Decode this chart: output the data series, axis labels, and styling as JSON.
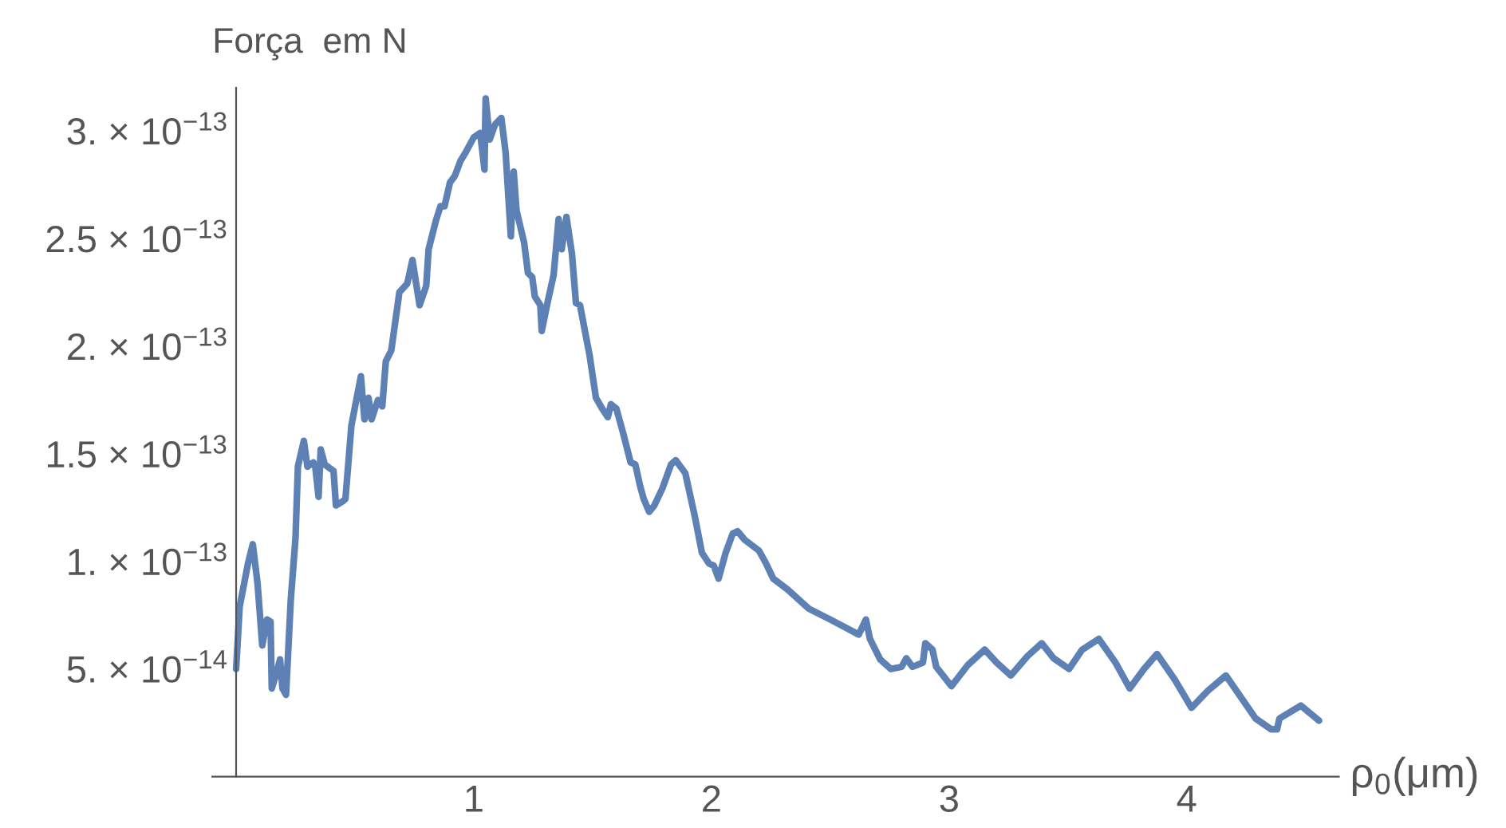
{
  "chart_data": {
    "type": "line",
    "ylabel": "Força  em N",
    "xlabel": "ρ$_{0}$(μm)",
    "x": [
      0,
      0.015,
      0.05,
      0.07,
      0.09,
      0.11,
      0.13,
      0.145,
      0.15,
      0.17,
      0.185,
      0.195,
      0.21,
      0.23,
      0.25,
      0.26,
      0.285,
      0.3,
      0.325,
      0.333,
      0.347,
      0.356,
      0.373,
      0.41,
      0.42,
      0.45,
      0.46,
      0.485,
      0.525,
      0.54,
      0.557,
      0.57,
      0.597,
      0.615,
      0.63,
      0.653,
      0.687,
      0.72,
      0.742,
      0.772,
      0.8,
      0.81,
      0.84,
      0.86,
      0.877,
      0.9,
      0.92,
      0.944,
      0.966,
      1.0,
      1.027,
      1.045,
      1.05,
      1.067,
      1.09,
      1.116,
      1.134,
      1.156,
      1.168,
      1.18,
      1.212,
      1.228,
      1.246,
      1.257,
      1.28,
      1.286,
      1.31,
      1.336,
      1.357,
      1.37,
      1.39,
      1.413,
      1.43,
      1.447,
      1.487,
      1.514,
      1.54,
      1.564,
      1.577,
      1.6,
      1.63,
      1.66,
      1.68,
      1.7,
      1.715,
      1.738,
      1.76,
      1.794,
      1.83,
      1.85,
      1.89,
      1.93,
      1.96,
      1.99,
      2.01,
      2.03,
      2.06,
      2.09,
      2.11,
      2.14,
      2.2,
      2.23,
      2.26,
      2.32,
      2.41,
      2.5,
      2.62,
      2.65,
      2.667,
      2.71,
      2.755,
      2.8,
      2.82,
      2.846,
      2.89,
      2.9,
      2.93,
      2.946,
      3.01,
      3.08,
      3.15,
      3.2,
      3.26,
      3.33,
      3.39,
      3.44,
      3.505,
      3.56,
      3.63,
      3.7,
      3.76,
      3.82,
      3.875,
      3.95,
      4.02,
      4.09,
      4.165,
      4.29,
      4.355,
      4.38,
      4.39,
      4.48,
      4.557
    ],
    "series": [
      {
        "color": "#5e81b5",
        "values": [
          5e-14,
          7.9e-14,
          9.9e-14,
          1.08e-13,
          9e-14,
          6.1e-14,
          7.3e-14,
          7.2e-14,
          4.1e-14,
          4.8e-14,
          5.45e-14,
          4.1e-14,
          3.8e-14,
          8.2e-14,
          1.11e-13,
          1.44e-13,
          1.56e-13,
          1.44e-13,
          1.46e-13,
          1.44e-13,
          1.3e-13,
          1.52e-13,
          1.45e-13,
          1.42e-13,
          1.26e-13,
          1.28e-13,
          1.29e-13,
          1.63e-13,
          1.86e-13,
          1.66e-13,
          1.76e-13,
          1.66e-13,
          1.75e-13,
          1.72e-13,
          1.93e-13,
          1.98e-13,
          2.25e-13,
          2.29e-13,
          2.4e-13,
          2.19e-13,
          2.28e-13,
          2.45e-13,
          2.58e-13,
          2.65e-13,
          2.65e-13,
          2.76e-13,
          2.79e-13,
          2.86e-13,
          2.9e-13,
          2.97e-13,
          2.99e-13,
          2.82e-13,
          3.15e-13,
          2.96e-13,
          3.03e-13,
          3.06e-13,
          2.9e-13,
          2.51e-13,
          2.81e-13,
          2.63e-13,
          2.48e-13,
          2.34e-13,
          2.32e-13,
          2.23e-13,
          2.19e-13,
          2.07e-13,
          2.2e-13,
          2.33e-13,
          2.59e-13,
          2.45e-13,
          2.6e-13,
          2.43e-13,
          2.2e-13,
          2.19e-13,
          1.96e-13,
          1.76e-13,
          1.71e-13,
          1.67e-13,
          1.73e-13,
          1.71e-13,
          1.59e-13,
          1.46e-13,
          1.45e-13,
          1.35e-13,
          1.29e-13,
          1.23e-13,
          1.26e-13,
          1.34e-13,
          1.45e-13,
          1.47e-13,
          1.41e-13,
          1.21e-13,
          1.04e-13,
          9.9e-14,
          9.8e-14,
          9.2e-14,
          1.04e-13,
          1.13e-13,
          1.14e-13,
          1.1e-13,
          1.05e-13,
          9.9e-14,
          9.2e-14,
          8.7e-14,
          7.8e-14,
          7.3e-14,
          6.6e-14,
          7.3e-14,
          6.4e-14,
          5.45e-14,
          5e-14,
          5.1e-14,
          5.5e-14,
          5.1e-14,
          5.3e-14,
          6.2e-14,
          5.9e-14,
          5.1e-14,
          4.2e-14,
          5.2e-14,
          5.9e-14,
          5.3e-14,
          4.7e-14,
          5.6e-14,
          6.2e-14,
          5.5e-14,
          5e-14,
          5.9e-14,
          6.4e-14,
          5.3e-14,
          4.1e-14,
          5e-14,
          5.7e-14,
          4.5e-14,
          3.2e-14,
          4e-14,
          4.7e-14,
          2.7e-14,
          2.2e-14,
          2.2e-14,
          2.7e-14,
          3.3e-14,
          2.6e-14
        ]
      }
    ],
    "xlim": [
      -0.1,
      4.64
    ],
    "ylim": [
      0,
      3.2e-13
    ],
    "xticks": [
      1,
      2,
      3,
      4
    ],
    "yticks": [
      {
        "value": 5e-14,
        "label": "5. × 10$^{−14}$"
      },
      {
        "value": 1e-13,
        "label": "1. × 10$^{−13}$"
      },
      {
        "value": 1.5e-13,
        "label": "1.5 × 10$^{−13}$"
      },
      {
        "value": 2e-13,
        "label": "2. × 10$^{−13}$"
      },
      {
        "value": 2.5e-13,
        "label": "2.5 × 10$^{−13}$"
      },
      {
        "value": 3e-13,
        "label": "3. × 10$^{−13}$"
      }
    ],
    "grid": false,
    "marker": "none",
    "line_style": "solid"
  }
}
